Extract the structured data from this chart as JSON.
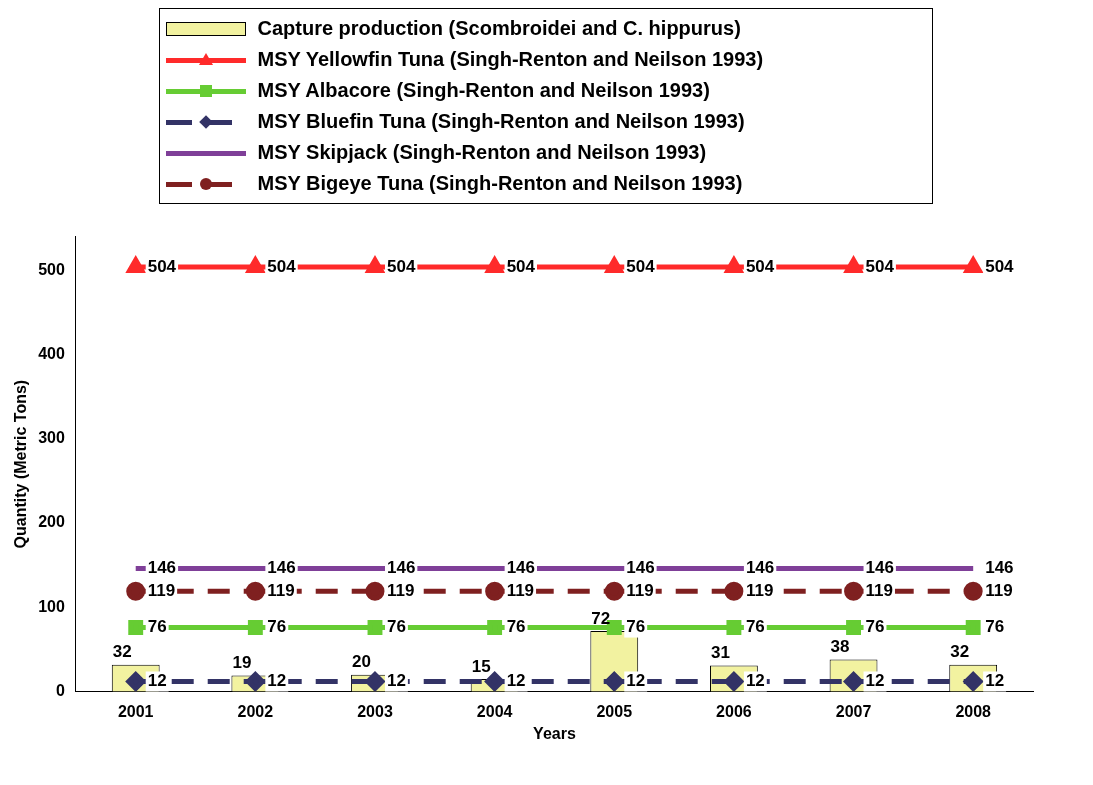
{
  "chart_data": {
    "type": "bar",
    "xlabel": "Years",
    "ylabel": "Quantity (Metric Tons)",
    "categories": [
      "2001",
      "2002",
      "2003",
      "2004",
      "2005",
      "2006",
      "2007",
      "2008"
    ],
    "series": [
      {
        "name": "Capture production (Scombroidei and C. hippurus)",
        "color": "#f2f2a0",
        "values": [
          32,
          19,
          20,
          15,
          72,
          31,
          38,
          32
        ]
      },
      {
        "name": "MSY Yellowfin Tuna (Singh-Renton and Neilson 1993)",
        "type": "line",
        "color": "#ff2a2a",
        "marker": "triangle",
        "line_style": "solid",
        "values": [
          504,
          504,
          504,
          504,
          504,
          504,
          504,
          504
        ]
      },
      {
        "name": "MSY Albacore (Singh-Renton and Neilson 1993)",
        "type": "line",
        "color": "#66cc33",
        "marker": "square",
        "line_style": "solid",
        "values": [
          76,
          76,
          76,
          76,
          76,
          76,
          76,
          76
        ]
      },
      {
        "name": "MSY Bluefin Tuna (Singh-Renton and Neilson 1993)",
        "type": "line",
        "color": "#333366",
        "marker": "diamond",
        "line_style": "dashed",
        "values": [
          12,
          12,
          12,
          12,
          12,
          12,
          12,
          12
        ]
      },
      {
        "name": "MSY Skipjack (Singh-Renton and Neilson 1993)",
        "type": "line",
        "color": "#7f3f98",
        "marker": "none",
        "line_style": "solid",
        "values": [
          146,
          146,
          146,
          146,
          146,
          146,
          146,
          146
        ]
      },
      {
        "name": "MSY Bigeye Tuna (Singh-Renton and Neilson 1993)",
        "type": "line",
        "color": "#7f2020",
        "marker": "circle",
        "line_style": "dashed",
        "values": [
          119,
          119,
          119,
          119,
          119,
          119,
          119,
          119
        ]
      }
    ],
    "ylim": [
      0,
      540
    ],
    "yticks": [
      0,
      100,
      200,
      300,
      400,
      500
    ],
    "grid": false,
    "legend": "top",
    "data_labels": true
  }
}
